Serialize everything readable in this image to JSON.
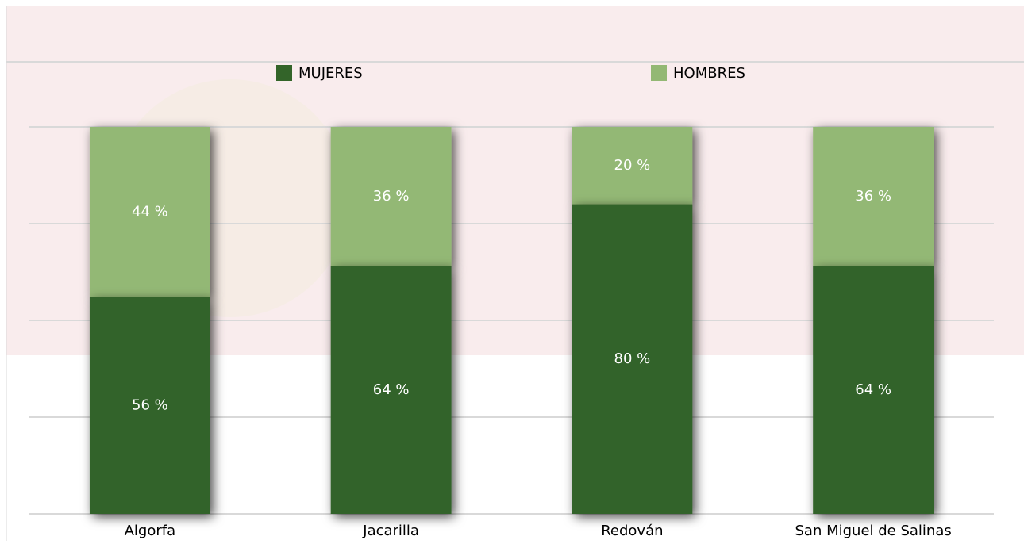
{
  "chart_data": {
    "type": "stacked_bar",
    "categories": [
      "Algorfa",
      "Jacarilla",
      "Redován",
      "San Miguel de Salinas"
    ],
    "series": [
      {
        "name": "MUJERES",
        "color": "#336429",
        "values": [
          56,
          64,
          80,
          64
        ],
        "value_labels": [
          "56 %",
          "64 %",
          "80 %",
          "64 %"
        ]
      },
      {
        "name": "HOMBRES",
        "color": "#93b874",
        "values": [
          44,
          36,
          20,
          36
        ],
        "value_labels": [
          "44 %",
          "36 %",
          "20 %",
          "36 %"
        ]
      }
    ],
    "ylim": [
      0,
      100
    ],
    "yticks": [
      0,
      25,
      50,
      75,
      100
    ],
    "grid": true,
    "legend": "top"
  }
}
